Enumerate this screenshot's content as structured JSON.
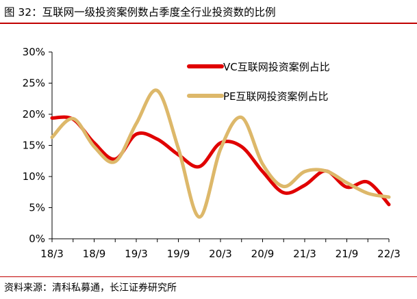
{
  "header": {
    "title": "图 32：互联网一级投资案例数占季度全行业投资数的比例"
  },
  "footer": {
    "source": "资料来源：清科私募通，长江证券研究所"
  },
  "chart_data": {
    "type": "line",
    "title": "",
    "xlabel": "",
    "ylabel": "",
    "ylim": [
      0,
      30
    ],
    "y_unit": "%",
    "yticks": [
      "0%",
      "5%",
      "10%",
      "15%",
      "20%",
      "25%",
      "30%"
    ],
    "x": [
      "18/3",
      "18/6",
      "18/9",
      "18/12",
      "19/3",
      "19/6",
      "19/9",
      "19/12",
      "20/3",
      "20/6",
      "20/9",
      "20/12",
      "21/3",
      "21/6",
      "21/9",
      "21/12",
      "22/3"
    ],
    "xtick_labels": [
      "18/3",
      "18/9",
      "19/3",
      "19/9",
      "20/3",
      "20/9",
      "21/3",
      "21/9",
      "22/3"
    ],
    "grid": false,
    "legend_position": "top-right",
    "series": [
      {
        "name": "VC互联网投资案例占比",
        "color": "#e00000",
        "values": [
          19.4,
          19.2,
          15.4,
          12.8,
          16.8,
          16.0,
          13.5,
          11.6,
          15.4,
          14.8,
          10.8,
          7.4,
          8.6,
          10.9,
          8.3,
          9.1,
          5.5
        ]
      },
      {
        "name": "PE互联网投资案例占比",
        "color": "#ddb86a",
        "values": [
          16.3,
          19.3,
          14.8,
          12.4,
          18.5,
          23.8,
          14.5,
          3.5,
          14.4,
          19.5,
          12.0,
          8.4,
          10.8,
          10.9,
          9.0,
          7.3,
          6.7
        ]
      }
    ]
  }
}
